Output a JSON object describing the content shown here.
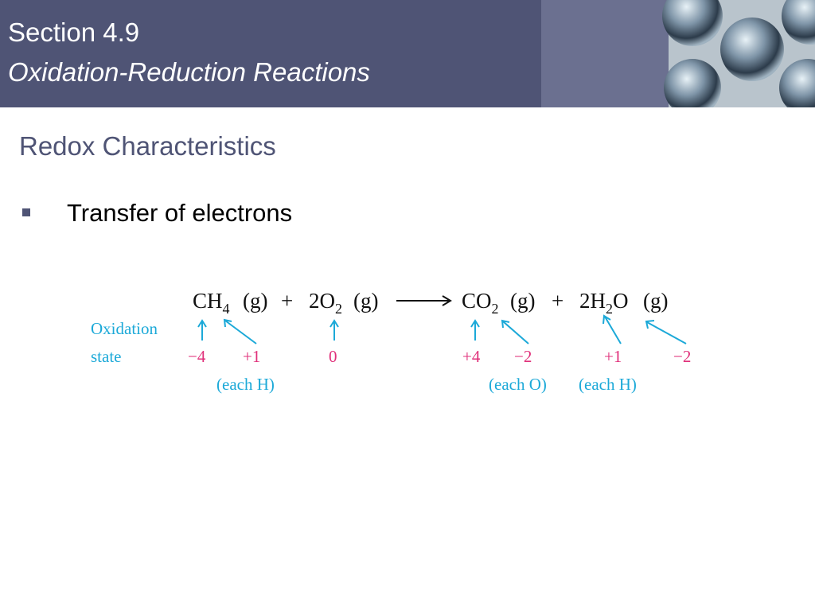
{
  "header": {
    "section": "Section 4.9",
    "title": "Oxidation-Reduction Reactions"
  },
  "heading": "Redox Characteristics",
  "bullets": [
    "Transfer of electrons"
  ],
  "equation": {
    "terms": [
      {
        "text": "CH",
        "sub": "4",
        "phase": "(g)"
      },
      {
        "text": "2O",
        "sub": "2",
        "phase": "(g)"
      },
      {
        "text": "CO",
        "sub": "2",
        "phase": "(g)"
      },
      {
        "text": "2H",
        "sub": "2",
        "rest": "O",
        "phase": "(g)"
      }
    ],
    "operators": [
      "+",
      "+"
    ],
    "state_label": [
      "Oxidation",
      "state"
    ],
    "states": [
      "−4",
      "+1",
      "0",
      "+4",
      "−2",
      "+1",
      "−2"
    ],
    "notes": [
      "(each H)",
      "(each O)",
      "(each H)"
    ]
  }
}
